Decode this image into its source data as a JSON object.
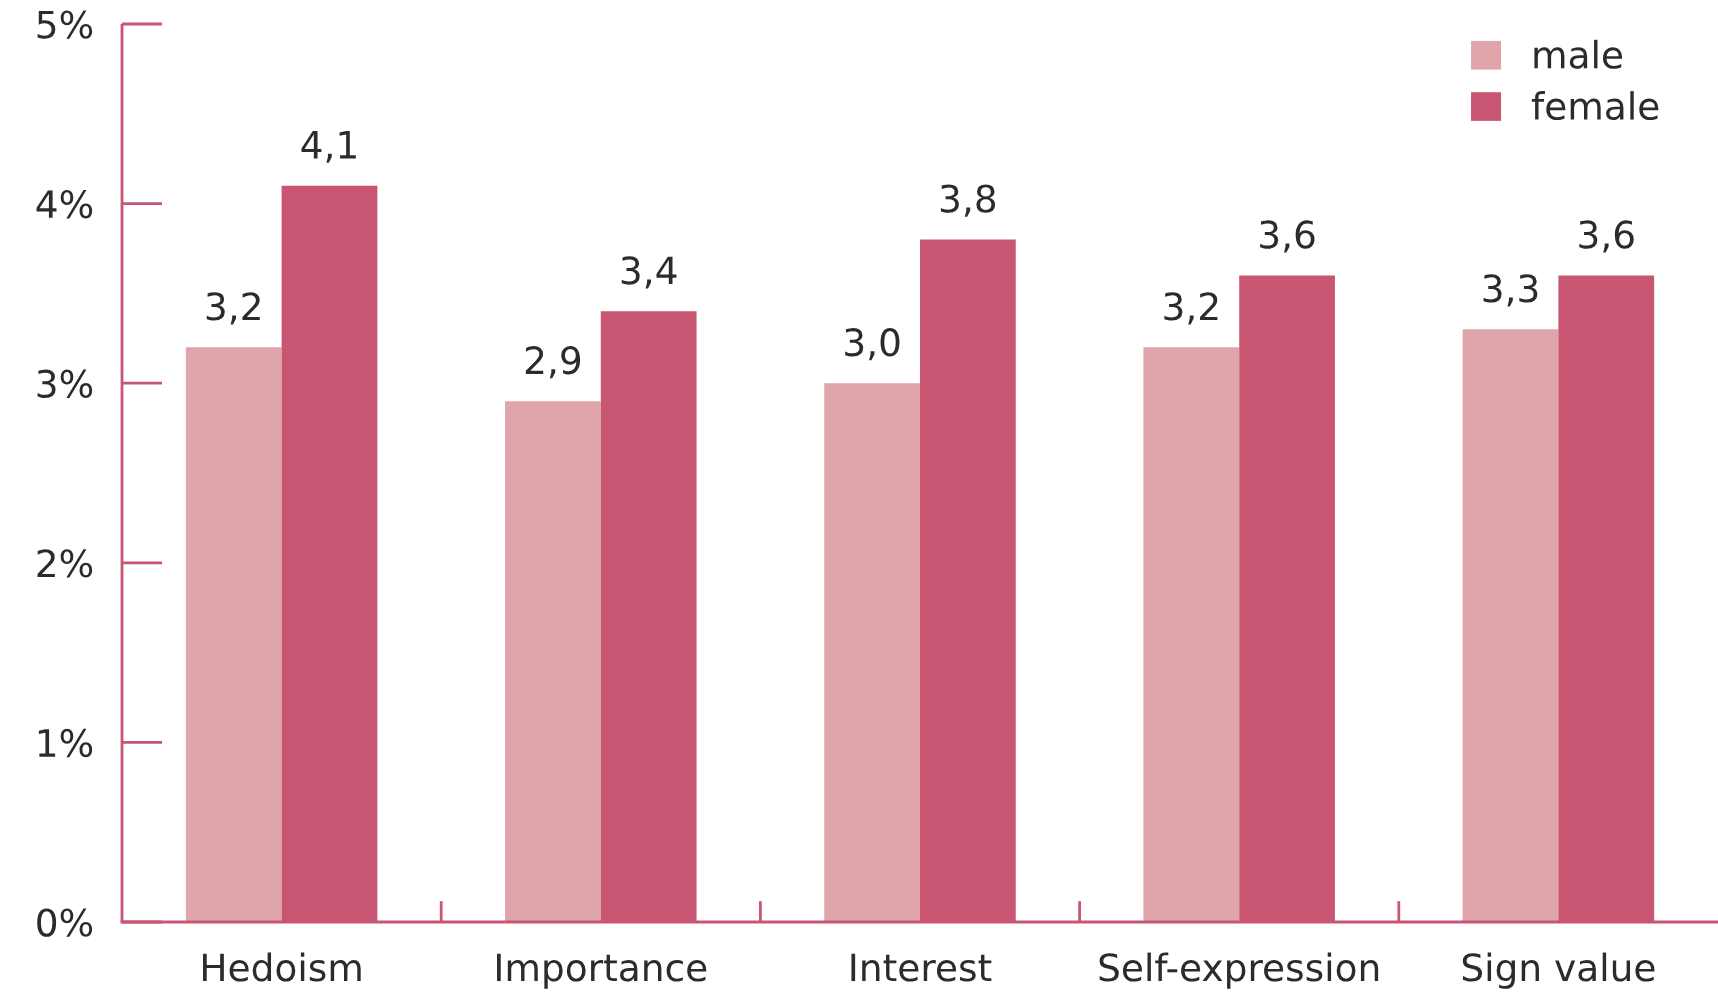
{
  "chart_data": {
    "type": "bar",
    "categories": [
      "Hedoism",
      "Importance",
      "Interest",
      "Self-expression",
      "Sign value"
    ],
    "series": [
      {
        "name": "male",
        "color": "#e0a4ab",
        "values": [
          3.2,
          2.9,
          3.0,
          3.2,
          3.3
        ],
        "value_labels": [
          "3,2",
          "2,9",
          "3,0",
          "3,2",
          "3,3"
        ]
      },
      {
        "name": "female",
        "color": "#c85672",
        "values": [
          4.1,
          3.4,
          3.8,
          3.6,
          3.6
        ],
        "value_labels": [
          "4,1",
          "3,4",
          "3,8",
          "3,6",
          "3,6"
        ]
      }
    ],
    "ylim": [
      0,
      5
    ],
    "yticks": [
      {
        "value": 0,
        "label": "0%"
      },
      {
        "value": 1,
        "label": "1%"
      },
      {
        "value": 2,
        "label": "2%"
      },
      {
        "value": 3,
        "label": "3%"
      },
      {
        "value": 4,
        "label": "4%"
      },
      {
        "value": 5,
        "label": "5%"
      }
    ],
    "grid": false,
    "legend": "top right"
  }
}
